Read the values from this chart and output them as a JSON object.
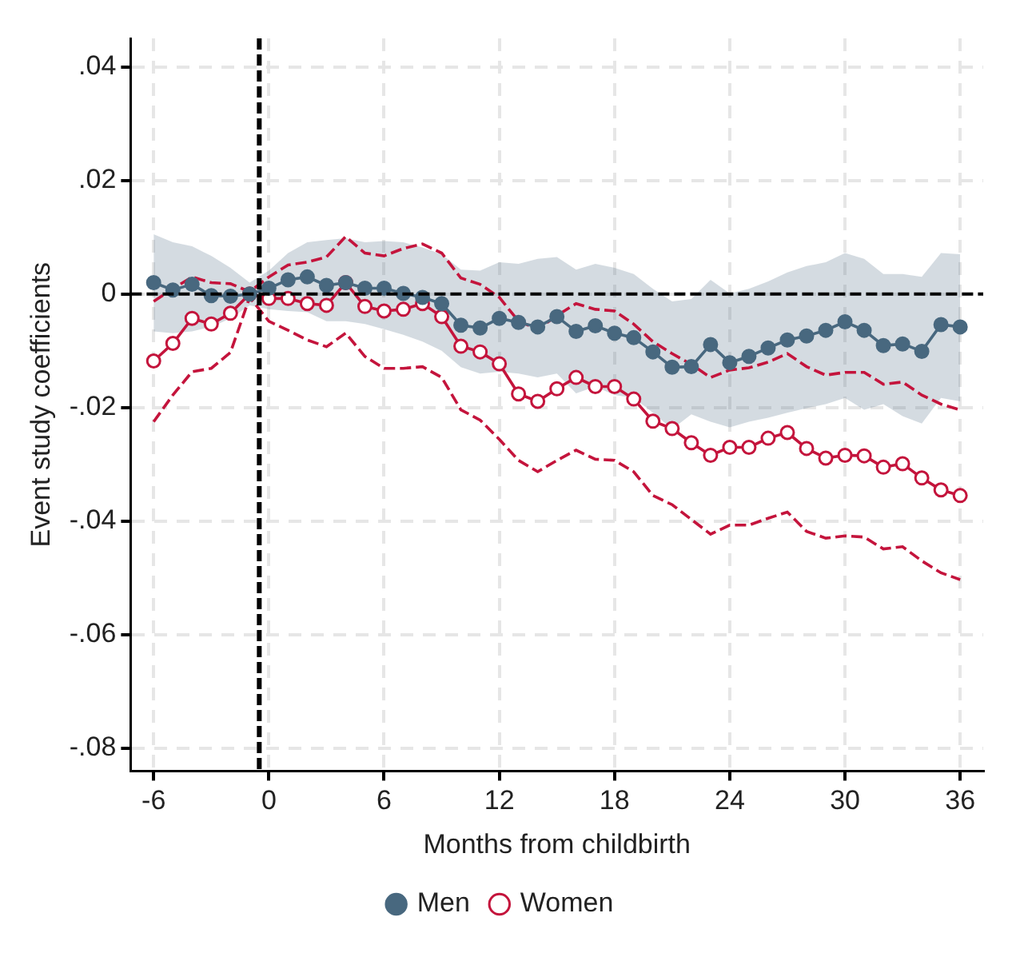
{
  "chart_data": {
    "type": "line",
    "xlabel": "Months from childbirth",
    "ylabel": "Event study coefficients",
    "x": [
      -6,
      -5,
      -4,
      -3,
      -2,
      -1,
      0,
      1,
      2,
      3,
      4,
      5,
      6,
      7,
      8,
      9,
      10,
      11,
      12,
      13,
      14,
      15,
      16,
      17,
      18,
      19,
      20,
      21,
      22,
      23,
      24,
      25,
      26,
      27,
      28,
      29,
      30,
      31,
      32,
      33,
      34,
      35,
      36
    ],
    "series": [
      {
        "name": "Men",
        "color": "#48687f",
        "marker": "circle",
        "values": [
          0.002,
          0.0007,
          0.0017,
          -0.0003,
          -0.0004,
          0,
          0.001,
          0.0025,
          0.003,
          0.0015,
          0.002,
          0.001,
          0.001,
          0.0001,
          -0.0006,
          -0.0017,
          -0.0055,
          -0.006,
          -0.0043,
          -0.005,
          -0.0058,
          -0.004,
          -0.0066,
          -0.0056,
          -0.0069,
          -0.0077,
          -0.0102,
          -0.0129,
          -0.0128,
          -0.0089,
          -0.0121,
          -0.011,
          -0.0095,
          -0.0081,
          -0.0074,
          -0.0064,
          -0.0049,
          -0.0064,
          -0.0091,
          -0.0088,
          -0.0101,
          -0.0054,
          -0.0058
        ],
        "lower": [
          -0.0066,
          -0.0069,
          -0.0066,
          -0.0058,
          -0.0043,
          -0.002,
          -0.0027,
          -0.003,
          -0.0032,
          -0.0048,
          -0.0048,
          -0.0053,
          -0.0062,
          -0.0072,
          -0.0084,
          -0.01,
          -0.0129,
          -0.014,
          -0.0137,
          -0.014,
          -0.0147,
          -0.014,
          -0.0175,
          -0.0163,
          -0.0178,
          -0.0183,
          -0.0209,
          -0.0238,
          -0.0212,
          -0.0225,
          -0.0235,
          -0.0225,
          -0.0218,
          -0.0209,
          -0.0201,
          -0.0194,
          -0.0183,
          -0.0204,
          -0.0194,
          -0.0215,
          -0.0228,
          -0.0183,
          -0.0189
        ],
        "upper": [
          0.0105,
          0.0091,
          0.0084,
          0.0067,
          0.0046,
          0.002,
          0.0041,
          0.0072,
          0.0091,
          0.0095,
          0.0098,
          0.0091,
          0.0093,
          0.0091,
          0.0082,
          0.007,
          0.0043,
          0.0041,
          0.0056,
          0.0053,
          0.0062,
          0.0065,
          0.0043,
          0.0053,
          0.0046,
          0.0035,
          0.0009,
          -0.0013,
          -0.0009,
          0.0025,
          0.0001,
          0.0009,
          0.0022,
          0.0038,
          0.0049,
          0.0056,
          0.0072,
          0.0062,
          0.0035,
          0.0035,
          0.003,
          0.0072,
          0.007
        ]
      },
      {
        "name": "Women",
        "color": "#c4143c",
        "marker": "circle",
        "values": [
          -0.0118,
          -0.0087,
          -0.0043,
          -0.0053,
          -0.0034,
          0,
          -0.0008,
          -0.0008,
          -0.0017,
          -0.002,
          0.002,
          -0.0022,
          -0.003,
          -0.0027,
          -0.0017,
          -0.004,
          -0.0092,
          -0.0102,
          -0.0123,
          -0.0176,
          -0.0189,
          -0.0167,
          -0.0147,
          -0.0163,
          -0.0163,
          -0.0185,
          -0.0224,
          -0.0237,
          -0.0262,
          -0.0284,
          -0.027,
          -0.027,
          -0.0254,
          -0.0244,
          -0.0272,
          -0.0289,
          -0.0284,
          -0.0285,
          -0.0305,
          -0.0299,
          -0.0324,
          -0.0345,
          -0.0355
        ]
      },
      {
        "color": "#c4143c",
        "marker": "none",
        "line_style": "dashed",
        "values": [
          -0.0013,
          0.0009,
          0.003,
          0.002,
          0.0018,
          0.0004,
          0.003,
          0.0051,
          0.0056,
          0.0065,
          0.0101,
          0.0072,
          0.0067,
          0.008,
          0.0088,
          0.0072,
          0.0028,
          0.0017,
          -0.0006,
          -0.0048,
          -0.0062,
          -0.0038,
          -0.0017,
          -0.0027,
          -0.003,
          -0.0053,
          -0.0084,
          -0.0105,
          -0.0124,
          -0.0147,
          -0.0134,
          -0.013,
          -0.012,
          -0.0105,
          -0.0128,
          -0.0143,
          -0.0138,
          -0.0138,
          -0.0159,
          -0.0155,
          -0.0178,
          -0.0194,
          -0.0204
        ]
      },
      {
        "color": "#c4143c",
        "marker": "none",
        "line_style": "dashed",
        "values": [
          -0.0225,
          -0.0178,
          -0.0137,
          -0.0131,
          -0.0103,
          -0.0006,
          -0.0048,
          -0.0064,
          -0.0081,
          -0.0093,
          -0.0069,
          -0.011,
          -0.0131,
          -0.0131,
          -0.0128,
          -0.0147,
          -0.0204,
          -0.0222,
          -0.0256,
          -0.0293,
          -0.0313,
          -0.0293,
          -0.0275,
          -0.0291,
          -0.0293,
          -0.0313,
          -0.0355,
          -0.0371,
          -0.0397,
          -0.0423,
          -0.0407,
          -0.0407,
          -0.0395,
          -0.0384,
          -0.0418,
          -0.043,
          -0.0426,
          -0.0428,
          -0.0449,
          -0.0445,
          -0.047,
          -0.0491,
          -0.0503
        ]
      }
    ],
    "xlim": [
      -7.2,
      37.2
    ],
    "xticks": [
      -6,
      0,
      6,
      12,
      18,
      24,
      30,
      36
    ],
    "ylim": [
      -0.084,
      0.045
    ],
    "yticks": [
      {
        "value": 0.04,
        "label": ".04"
      },
      {
        "value": 0.02,
        "label": ".02"
      },
      {
        "value": 0,
        "label": "0"
      },
      {
        "value": -0.02,
        "label": "-.02"
      },
      {
        "value": -0.04,
        "label": "-.04"
      },
      {
        "value": -0.06,
        "label": "-.06"
      },
      {
        "value": -0.08,
        "label": "-.08"
      }
    ],
    "ref_lines": [
      {
        "axis": "y",
        "value": 0,
        "color": "#000000",
        "line_style": "dashed"
      },
      {
        "axis": "x",
        "value": -0.5,
        "color": "#000000",
        "line_style": "dashed"
      }
    ],
    "grid": true,
    "legend": "bottom"
  }
}
